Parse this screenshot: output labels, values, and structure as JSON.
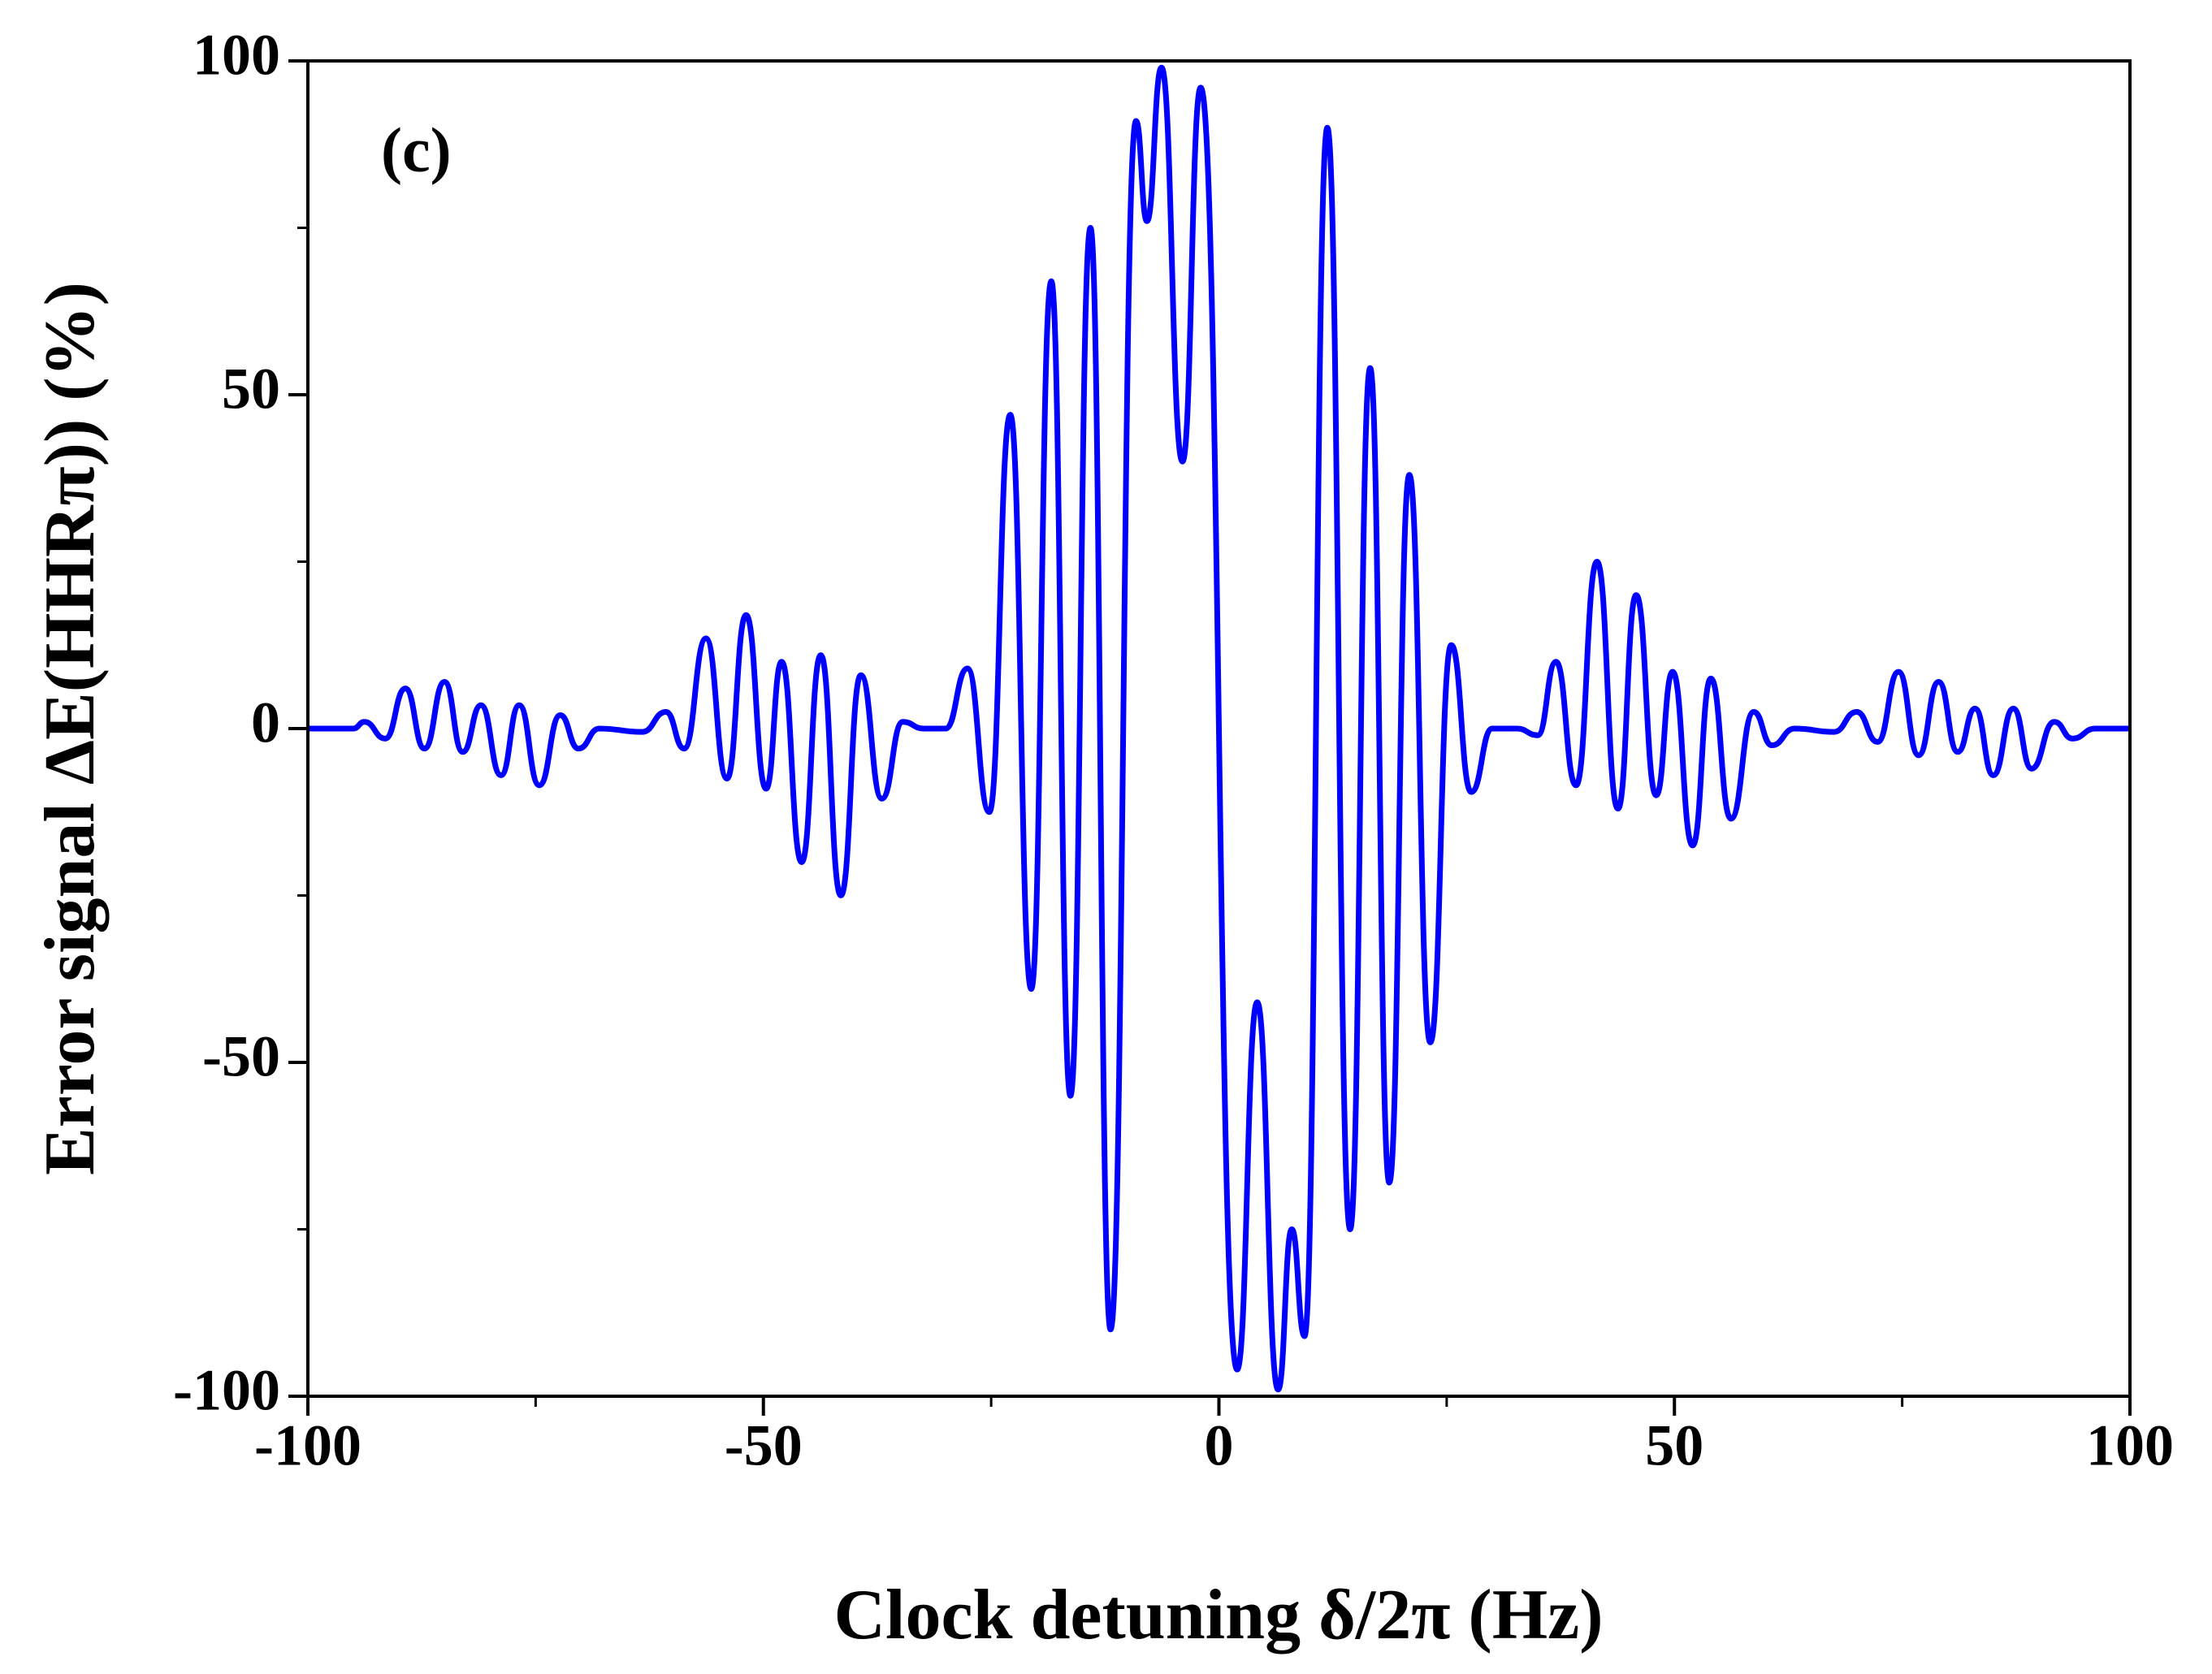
{
  "chart_data": {
    "type": "line",
    "xlabel": "Clock detuning δ/2π (Hz)",
    "ylabel": "Error signal ΔE(HHRπ)) (%)",
    "annotation": "(c)",
    "xlim": [
      -100,
      100
    ],
    "xticks": [
      -100,
      -50,
      0,
      50,
      100
    ],
    "xminorticks": [
      -75,
      -25,
      25,
      75
    ],
    "ylim": [
      -100,
      100
    ],
    "yticks": [
      -100,
      -50,
      0,
      50,
      100
    ],
    "yminorticks": [
      -75,
      -25,
      25,
      75
    ],
    "grid": false,
    "series": [
      {
        "color": "#0000ff",
        "x": [
          -100,
          -95,
          -93.8,
          -91.5,
          -89.3,
          -87.2,
          -85,
          -83,
          -81,
          -78.8,
          -76.8,
          -74.6,
          -72.3,
          -70.3,
          -68,
          -63.3,
          -60.7,
          -58.7,
          -56.3,
          -54,
          -51.9,
          -49.7,
          -48,
          -45.8,
          -43.7,
          -41.5,
          -39.3,
          -37,
          -34.7,
          -32.4,
          -30,
          -27.6,
          -25.2,
          -22.9,
          -20.6,
          -18.4,
          -16.3,
          -14.1,
          -11.9,
          -9.1,
          -7.9,
          -6.3,
          -4,
          -2,
          2,
          4.2,
          6.5,
          8,
          9.4,
          11.9,
          14.4,
          16.6,
          18.7,
          20.9,
          23.2,
          25.5,
          27.7,
          30,
          32.7,
          35,
          37,
          39.2,
          41.5,
          43.8,
          45.8,
          48,
          49.8,
          52,
          54,
          56.2,
          58.7,
          60.7,
          63.2,
          67.5,
          70,
          72.3,
          74.6,
          76.8,
          79,
          81.1,
          83,
          85,
          87.2,
          89.2,
          91.7,
          93.7,
          96.2,
          100
        ],
        "values": [
          0,
          0,
          1,
          -1.5,
          6,
          -3,
          7,
          -3.5,
          3.5,
          -7,
          3.5,
          -8.5,
          2,
          -3,
          0,
          -0.5,
          2.5,
          -3,
          13.5,
          -7.5,
          17,
          -9,
          10,
          -20,
          11,
          -25,
          8,
          -10.5,
          1,
          0,
          0,
          9,
          -12.5,
          47,
          -39,
          67,
          -55,
          75,
          -90,
          91,
          76,
          99,
          40,
          96,
          -96,
          -41,
          -99,
          -75,
          -91,
          90,
          -75,
          54,
          -68,
          38,
          -47,
          12.5,
          -9.5,
          0,
          0,
          -1,
          10,
          -8.5,
          25,
          -12,
          20,
          -10,
          8.5,
          -17.5,
          7.5,
          -13.5,
          2.5,
          -2.5,
          0,
          -0.5,
          2.5,
          -2,
          8.5,
          -4,
          7,
          -3.5,
          3,
          -7,
          3,
          -6,
          1,
          -1.5,
          0,
          0
        ]
      }
    ]
  }
}
